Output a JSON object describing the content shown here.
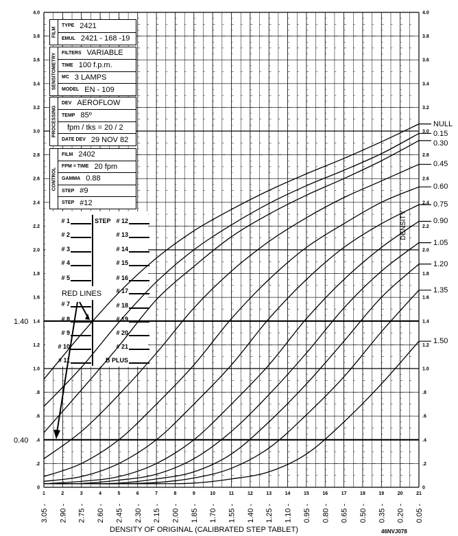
{
  "chart_data": {
    "type": "line",
    "title": "",
    "xlabel": "DENSITY OF ORIGINAL (CALIBRATED STEP TABLET)",
    "ylabel": "DENSITY",
    "figure_id": "46NVJ078",
    "xlim": [
      1,
      21
    ],
    "ylim": [
      0,
      4.0
    ],
    "x_ticks": [
      "1",
      "2",
      "3",
      "4",
      "5",
      "6",
      "7",
      "8",
      "9",
      "10",
      "11",
      "12",
      "13",
      "14",
      "15",
      "16",
      "17",
      "18",
      "19",
      "20",
      "21"
    ],
    "x_density_labels": [
      "3.05 -",
      "2.90 -",
      "2.75 -",
      "2.60 -",
      "2.45 -",
      "2.30 -",
      "2.15 -",
      "2.00 -",
      "1.85 -",
      "1.70 -",
      "1.55 -",
      "1.40 -",
      "1.25 -",
      "1.10 -",
      "0.95 -",
      "0.80 -",
      "0.65 -",
      "0.50 -",
      "0.35 -",
      "0.20 -",
      "0.05 -"
    ],
    "y_ticks": [
      {
        "v": 0,
        "t": "0"
      },
      {
        "v": 0.2,
        "t": ".2"
      },
      {
        "v": 0.4,
        "t": ".4"
      },
      {
        "v": 0.6,
        "t": ".6"
      },
      {
        "v": 0.8,
        "t": ".8"
      },
      {
        "v": 1.0,
        "t": "1.0"
      },
      {
        "v": 1.2,
        "t": "1.2"
      },
      {
        "v": 1.4,
        "t": "1.4"
      },
      {
        "v": 1.6,
        "t": "1.6"
      },
      {
        "v": 1.8,
        "t": "1.8"
      },
      {
        "v": 2.0,
        "t": "2.0"
      },
      {
        "v": 2.2,
        "t": "2.2"
      },
      {
        "v": 2.4,
        "t": "2.4"
      },
      {
        "v": 2.6,
        "t": "2.6"
      },
      {
        "v": 2.8,
        "t": "2.8"
      },
      {
        "v": 3.0,
        "t": "3.0"
      },
      {
        "v": 3.2,
        "t": "3.2"
      },
      {
        "v": 3.4,
        "t": "3.4"
      },
      {
        "v": 3.6,
        "t": "3.6"
      },
      {
        "v": 3.8,
        "t": "3.8"
      },
      {
        "v": 4.0,
        "t": "4.0"
      }
    ],
    "grid": true,
    "reference_lines": [
      {
        "value": 1.4,
        "label": "1.40"
      },
      {
        "value": 0.4,
        "label": "0.40"
      }
    ],
    "x_points": [
      1,
      3,
      5,
      7,
      9,
      11,
      13,
      15,
      17,
      19,
      21
    ],
    "series": [
      {
        "name": "NULL",
        "values": [
          0.91,
          1.29,
          1.64,
          1.93,
          2.16,
          2.34,
          2.5,
          2.64,
          2.77,
          2.91,
          3.06
        ]
      },
      {
        "name": "0.15",
        "values": [
          0.68,
          1.01,
          1.39,
          1.73,
          2.0,
          2.21,
          2.39,
          2.54,
          2.67,
          2.81,
          2.98
        ]
      },
      {
        "name": "0.30",
        "values": [
          0.46,
          0.82,
          1.19,
          1.58,
          1.86,
          2.11,
          2.3,
          2.46,
          2.6,
          2.75,
          2.92
        ]
      },
      {
        "name": "0.45",
        "values": [
          0.24,
          0.47,
          0.78,
          1.13,
          1.51,
          1.82,
          2.07,
          2.27,
          2.44,
          2.58,
          2.72
        ]
      },
      {
        "name": "0.60",
        "values": [
          0.09,
          0.2,
          0.4,
          0.7,
          1.03,
          1.42,
          1.75,
          2.02,
          2.22,
          2.4,
          2.53
        ]
      },
      {
        "name": "0.75",
        "values": [
          0.05,
          0.09,
          0.2,
          0.4,
          0.7,
          1.03,
          1.42,
          1.75,
          2.02,
          2.22,
          2.38
        ]
      },
      {
        "name": "0.90",
        "values": [
          0.03,
          0.05,
          0.09,
          0.2,
          0.4,
          0.7,
          1.03,
          1.42,
          1.75,
          2.02,
          2.24
        ]
      },
      {
        "name": "1.05",
        "values": [
          0.03,
          0.032,
          0.06,
          0.11,
          0.24,
          0.47,
          0.78,
          1.13,
          1.51,
          1.82,
          2.06
        ]
      },
      {
        "name": "1.20",
        "values": [
          0.03,
          0.03,
          0.035,
          0.07,
          0.13,
          0.28,
          0.55,
          0.87,
          1.23,
          1.6,
          1.88
        ]
      },
      {
        "name": "1.35",
        "values": [
          0.03,
          0.03,
          0.03,
          0.04,
          0.078,
          0.16,
          0.33,
          0.61,
          0.93,
          1.31,
          1.66
        ]
      },
      {
        "name": "1.50",
        "values": [
          0.03,
          0.03,
          0.03,
          0.03,
          0.035,
          0.07,
          0.13,
          0.28,
          0.55,
          0.87,
          1.23
        ]
      }
    ]
  },
  "info_table": {
    "film": {
      "section": "FILM",
      "rows": [
        {
          "k": "TYPE",
          "v": "2421"
        },
        {
          "k": "EMUL",
          "v": "2421 - 168 -19"
        }
      ]
    },
    "sensitometry": {
      "section": "SENSITOMETRY",
      "rows": [
        {
          "k": "FILTERS",
          "v": "VARIABLE"
        },
        {
          "k": "TIME",
          "v": "100  f.p.m."
        },
        {
          "k": "MC",
          "v": "3  LAMPS"
        },
        {
          "k": "MODEL",
          "v": "EN - 109"
        }
      ]
    },
    "processing": {
      "section": "PROCESSING",
      "rows": [
        {
          "k": "DEV",
          "v": "AEROFLOW"
        },
        {
          "k": "TEMP",
          "v": "85º"
        },
        {
          "k": "",
          "v": "fpm / tks = 20 / 2"
        },
        {
          "k": "DATE DEV",
          "v": "29  NOV  82"
        }
      ]
    },
    "control": {
      "section": "CONTROL",
      "rows": [
        {
          "k": "FILM",
          "v": "2402"
        },
        {
          "k": "FPM = TIME",
          "v": "20  fpm"
        },
        {
          "k": "GAMMA",
          "v": "0.88"
        },
        {
          "k": "STEP",
          "v": "#9"
        },
        {
          "k": "STEP",
          "v": "#12"
        }
      ]
    }
  },
  "step_legend": {
    "left": [
      "# 1",
      "# 2",
      "# 3",
      "# 4",
      "# 5",
      "# 7",
      "# 8",
      "# 9",
      "# 10",
      "# 11"
    ],
    "right_prefix": "STEP",
    "right": [
      "# 12",
      "# 13",
      "# 14",
      "# 15",
      "# 16",
      "# 17",
      "# 18",
      "# 19",
      "# 20",
      "# 21",
      "B PLUS"
    ],
    "red_lines_label": "RED LINES"
  }
}
